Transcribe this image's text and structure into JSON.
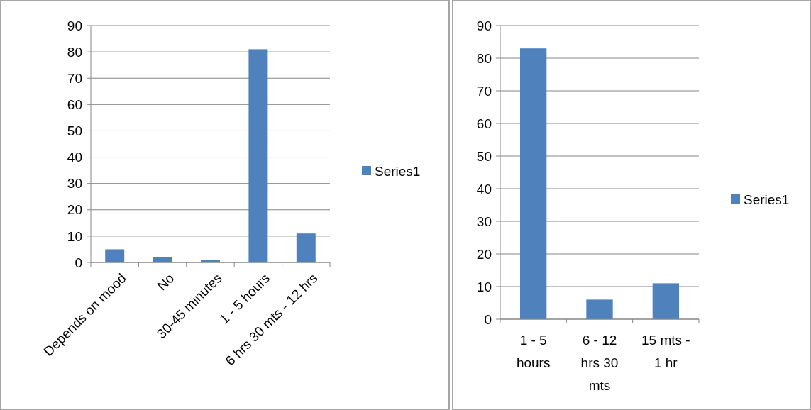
{
  "chart_data": [
    {
      "type": "bar",
      "categories": [
        "Depends on mood",
        "No",
        "30-45 minutes",
        "1 - 5 hours",
        "6 hrs 30 mts - 12 hrs"
      ],
      "series": [
        {
          "name": "Series1",
          "color": "#4f81bd",
          "values": [
            5,
            2,
            1,
            81,
            11
          ]
        }
      ],
      "ylim": [
        0,
        90
      ],
      "yticks": [
        0,
        10,
        20,
        30,
        40,
        50,
        60,
        70,
        80,
        90
      ],
      "grid": "y",
      "legend": "right"
    },
    {
      "type": "bar",
      "categories": [
        "1 - 5 hours",
        "6 - 12 hrs 30 mts",
        "15 mts - 1 hr"
      ],
      "series": [
        {
          "name": "Series1",
          "color": "#4f81bd",
          "values": [
            83,
            6,
            11
          ]
        }
      ],
      "ylim": [
        0,
        90
      ],
      "yticks": [
        0,
        10,
        20,
        30,
        40,
        50,
        60,
        70,
        80,
        90
      ],
      "grid": "y",
      "legend": "right"
    }
  ]
}
